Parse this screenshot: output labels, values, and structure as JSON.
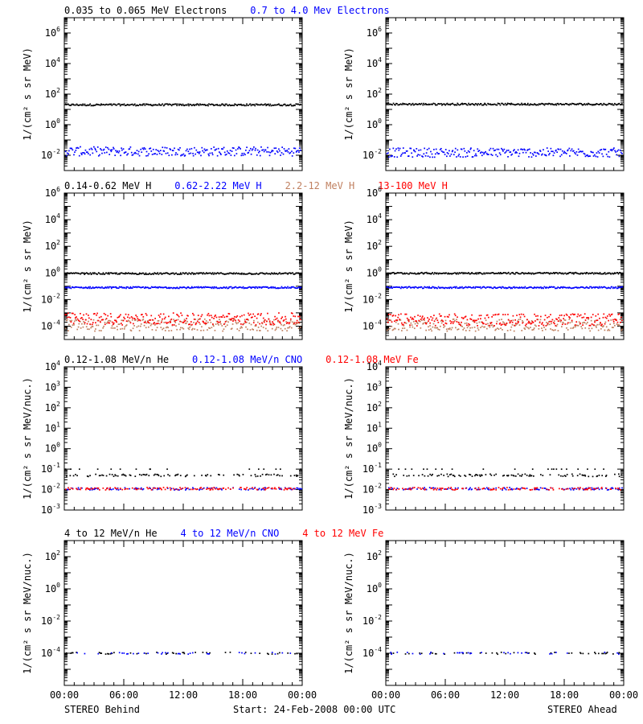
{
  "footer": {
    "left": "STEREO Behind",
    "center": "Start: 24-Feb-2008 00:00 UTC",
    "right": "STEREO Ahead"
  },
  "colors": {
    "black": "#000000",
    "blue": "#0000ff",
    "tan": "#c08060",
    "red": "#ff0000"
  },
  "chart_data": [
    {
      "type": "scatter",
      "panel": "electrons",
      "legend": [
        {
          "text": "0.035 to 0.065 MeV Electrons",
          "color": "#000000"
        },
        {
          "text": "0.7 to 4.0 Mev Electrons",
          "color": "#0000ff"
        }
      ],
      "ylabel": "1/(cm² s sr MeV)",
      "yscale": "log",
      "ylim": [
        0.001,
        10000000
      ],
      "yticks": [
        {
          "exp": "-2"
        },
        {
          "exp": "0"
        },
        {
          "exp": "2"
        },
        {
          "exp": "4"
        },
        {
          "exp": "6"
        }
      ],
      "series": [
        {
          "color": "#000000",
          "behind": 20,
          "ahead": 22
        },
        {
          "color": "#0000ff",
          "behind": 0.018,
          "ahead": 0.015
        }
      ]
    },
    {
      "type": "scatter",
      "panel": "protons",
      "legend": [
        {
          "text": "0.14-0.62 MeV H",
          "color": "#000000"
        },
        {
          "text": "0.62-2.22 MeV H",
          "color": "#0000ff"
        },
        {
          "text": "2.2-12 MeV H",
          "color": "#c08060"
        },
        {
          "text": "13-100 MeV H",
          "color": "#ff0000"
        }
      ],
      "ylabel": "1/(cm² s sr MeV)",
      "yscale": "log",
      "ylim": [
        1e-05,
        1000000
      ],
      "yticks": [
        {
          "exp": "-4"
        },
        {
          "exp": "-2"
        },
        {
          "exp": "0"
        },
        {
          "exp": "2"
        },
        {
          "exp": "4"
        },
        {
          "exp": "6"
        }
      ],
      "series": [
        {
          "color": "#000000",
          "behind": 0.9,
          "ahead": 0.95
        },
        {
          "color": "#0000ff",
          "behind": 0.08,
          "ahead": 0.08
        },
        {
          "color": "#c08060",
          "behind": 0.00012,
          "ahead": 0.00012
        },
        {
          "color": "#ff0000",
          "behind": 0.00035,
          "ahead": 0.0003
        }
      ]
    },
    {
      "type": "scatter",
      "panel": "heavy-ions-low",
      "legend": [
        {
          "text": "0.12-1.08 MeV/n He",
          "color": "#000000"
        },
        {
          "text": "0.12-1.08 MeV/n CNO",
          "color": "#0000ff"
        },
        {
          "text": "0.12-1.08 MeV Fe",
          "color": "#ff0000"
        }
      ],
      "ylabel": "1/(cm² s sr MeV/nuc.)",
      "yscale": "log",
      "ylim": [
        0.001,
        10000
      ],
      "yticks": [
        {
          "exp": "-3"
        },
        {
          "exp": "-2"
        },
        {
          "exp": "-1"
        },
        {
          "exp": "0"
        },
        {
          "exp": "1"
        },
        {
          "exp": "2"
        },
        {
          "exp": "3"
        },
        {
          "exp": "4"
        }
      ],
      "series": [
        {
          "color": "#000000",
          "behind": 0.05,
          "ahead": 0.05
        },
        {
          "color": "#0000ff",
          "behind": 0.011,
          "ahead": 0.011
        },
        {
          "color": "#ff0000",
          "behind": 0.011,
          "ahead": 0.011
        }
      ]
    },
    {
      "type": "scatter",
      "panel": "heavy-ions-high",
      "legend": [
        {
          "text": "4 to 12 MeV/n He",
          "color": "#000000"
        },
        {
          "text": "4 to 12 MeV/n CNO",
          "color": "#0000ff"
        },
        {
          "text": "4 to 12 MeV Fe",
          "color": "#ff0000"
        }
      ],
      "ylabel": "1/(cm² s sr MeV/nuc.)",
      "yscale": "log",
      "ylim": [
        1e-06,
        1000
      ],
      "yticks": [
        {
          "exp": "-4"
        },
        {
          "exp": "-2"
        },
        {
          "exp": "0"
        },
        {
          "exp": "2"
        }
      ],
      "series": [
        {
          "color": "#000000",
          "behind": 0.0001,
          "ahead": 0.0001
        },
        {
          "color": "#0000ff",
          "behind": 0.0001,
          "ahead": 0.0001
        }
      ]
    }
  ],
  "xaxis": {
    "ticks": [
      "00:00",
      "06:00",
      "12:00",
      "18:00",
      "00:00"
    ],
    "range_hours": [
      0,
      24
    ]
  }
}
